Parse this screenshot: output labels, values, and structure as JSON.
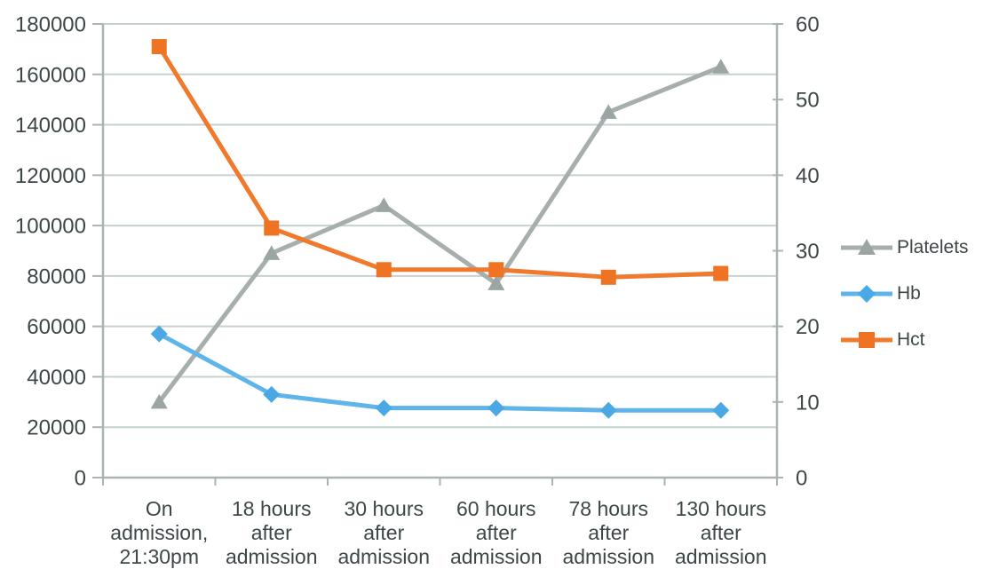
{
  "chart_data": {
    "type": "line",
    "categories": [
      "On admission, 21:30pm",
      "18 hours after admission",
      "30 hours after admission",
      "60 hours after admission",
      "78 hours after admission",
      "130 hours after admission"
    ],
    "category_label_lines": [
      [
        "On",
        "admission,",
        "21:30pm"
      ],
      [
        "18 hours",
        "after",
        "admission"
      ],
      [
        "30 hours",
        "after",
        "admission"
      ],
      [
        "60 hours",
        "after",
        "admission"
      ],
      [
        "78 hours",
        "after",
        "admission"
      ],
      [
        "130 hours",
        "after",
        "admission"
      ]
    ],
    "series": [
      {
        "name": "Platelets",
        "axis": "left",
        "marker": "triangle",
        "color": "#a6afae",
        "marker_color": "#9aa5a4",
        "values": [
          30000,
          89000,
          108000,
          77000,
          145000,
          163000
        ]
      },
      {
        "name": "Hb",
        "axis": "right",
        "marker": "diamond",
        "color": "#5fb4e9",
        "marker_color": "#4aa9e4",
        "values": [
          19,
          11,
          9.2,
          9.2,
          8.9,
          8.9
        ]
      },
      {
        "name": "Hct",
        "axis": "right",
        "marker": "square",
        "color": "#f0792b",
        "marker_color": "#ee7424",
        "values": [
          57,
          33,
          27.5,
          27.5,
          26.5,
          27
        ]
      }
    ],
    "left_axis": {
      "min": 0,
      "max": 180000,
      "step": 20000,
      "tick_labels_top_to_bottom": [
        "180000",
        "160000",
        "140000",
        "120000",
        "100000",
        "80000",
        "60000",
        "40000",
        "20000",
        "0"
      ]
    },
    "right_axis": {
      "min": 0,
      "max": 60,
      "step": 10,
      "tick_labels_top_to_bottom": [
        "60",
        "50",
        "40",
        "30",
        "20",
        "10",
        "0"
      ]
    },
    "grid": true,
    "legend_position": "right",
    "xlabel": "",
    "ylabel_left": "",
    "ylabel_right": ""
  },
  "colors": {
    "background": "#ffffff",
    "text": "#3d4747",
    "grid": "#c7d0d0",
    "axis": "#a9b4b4"
  }
}
